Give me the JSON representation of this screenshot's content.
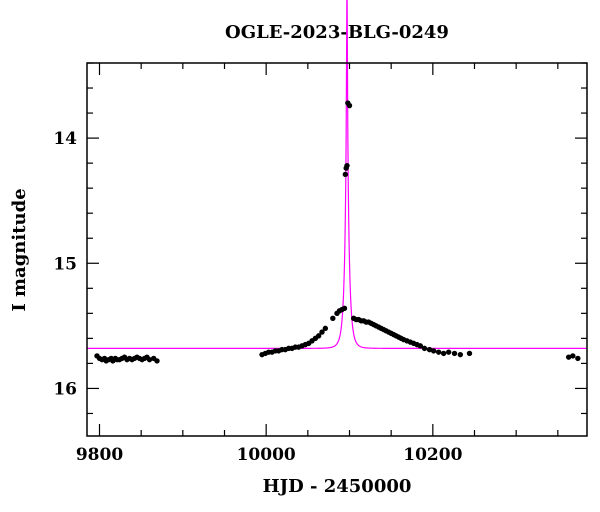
{
  "chart_data": {
    "type": "scatter",
    "title": "OGLE-2023-BLG-0249",
    "xlabel": "HJD - 2450000",
    "ylabel": "I magnitude",
    "xlim": [
      9785,
      10385
    ],
    "ylim": [
      16.38,
      13.4
    ],
    "y_inverted": true,
    "grid": false,
    "x_ticks": [
      9800,
      10000,
      10200
    ],
    "y_ticks": [
      14,
      15,
      16
    ],
    "x_minor_step": 50,
    "y_minor_step": 0.2,
    "series": [
      {
        "style": "points",
        "color": "#000000",
        "points": [
          [
            9797,
            15.74
          ],
          [
            9800,
            15.76
          ],
          [
            9803,
            15.77
          ],
          [
            9806,
            15.76
          ],
          [
            9808,
            15.78
          ],
          [
            9811,
            15.77
          ],
          [
            9814,
            15.76
          ],
          [
            9816,
            15.78
          ],
          [
            9819,
            15.76
          ],
          [
            9821,
            15.77
          ],
          [
            9824,
            15.77
          ],
          [
            9827,
            15.76
          ],
          [
            9830,
            15.75
          ],
          [
            9833,
            15.77
          ],
          [
            9836,
            15.76
          ],
          [
            9839,
            15.77
          ],
          [
            9842,
            15.76
          ],
          [
            9845,
            15.75
          ],
          [
            9848,
            15.76
          ],
          [
            9851,
            15.77
          ],
          [
            9854,
            15.76
          ],
          [
            9857,
            15.75
          ],
          [
            9860,
            15.77
          ],
          [
            9865,
            15.76
          ],
          [
            9869,
            15.78
          ],
          [
            9995,
            15.73
          ],
          [
            9999,
            15.72
          ],
          [
            10003,
            15.71
          ],
          [
            10007,
            15.71
          ],
          [
            10011,
            15.7
          ],
          [
            10015,
            15.7
          ],
          [
            10019,
            15.69
          ],
          [
            10023,
            15.69
          ],
          [
            10027,
            15.68
          ],
          [
            10031,
            15.68
          ],
          [
            10035,
            15.67
          ],
          [
            10039,
            15.67
          ],
          [
            10043,
            15.66
          ],
          [
            10047,
            15.65
          ],
          [
            10051,
            15.64
          ],
          [
            10055,
            15.62
          ],
          [
            10059,
            15.6
          ],
          [
            10063,
            15.58
          ],
          [
            10067,
            15.55
          ],
          [
            10071,
            15.52
          ],
          [
            10080,
            15.44
          ],
          [
            10085,
            15.4
          ],
          [
            10088,
            15.38
          ],
          [
            10091,
            15.37
          ],
          [
            10094,
            15.36
          ],
          [
            10095,
            14.29
          ],
          [
            10096,
            14.24
          ],
          [
            10097,
            14.22
          ],
          [
            10098,
            13.72
          ],
          [
            10100,
            13.74
          ],
          [
            10105,
            15.44
          ],
          [
            10108,
            15.45
          ],
          [
            10111,
            15.45
          ],
          [
            10114,
            15.46
          ],
          [
            10117,
            15.46
          ],
          [
            10120,
            15.47
          ],
          [
            10123,
            15.47
          ],
          [
            10126,
            15.48
          ],
          [
            10129,
            15.49
          ],
          [
            10132,
            15.5
          ],
          [
            10135,
            15.51
          ],
          [
            10138,
            15.52
          ],
          [
            10141,
            15.53
          ],
          [
            10144,
            15.54
          ],
          [
            10147,
            15.55
          ],
          [
            10150,
            15.56
          ],
          [
            10153,
            15.57
          ],
          [
            10156,
            15.58
          ],
          [
            10159,
            15.59
          ],
          [
            10162,
            15.6
          ],
          [
            10165,
            15.61
          ],
          [
            10169,
            15.62
          ],
          [
            10173,
            15.63
          ],
          [
            10177,
            15.64
          ],
          [
            10181,
            15.65
          ],
          [
            10185,
            15.66
          ],
          [
            10190,
            15.68
          ],
          [
            10196,
            15.69
          ],
          [
            10201,
            15.7
          ],
          [
            10207,
            15.71
          ],
          [
            10213,
            15.72
          ],
          [
            10219,
            15.71
          ],
          [
            10226,
            15.72
          ],
          [
            10233,
            15.73
          ],
          [
            10244,
            15.72
          ],
          [
            10363,
            15.75
          ],
          [
            10368,
            15.74
          ],
          [
            10374,
            15.76
          ]
        ]
      },
      {
        "style": "line",
        "color": "#ff00ff",
        "model": {
          "t0": 10097,
          "tE": 5,
          "u0": 0.06,
          "baseline": 15.68
        }
      }
    ]
  }
}
